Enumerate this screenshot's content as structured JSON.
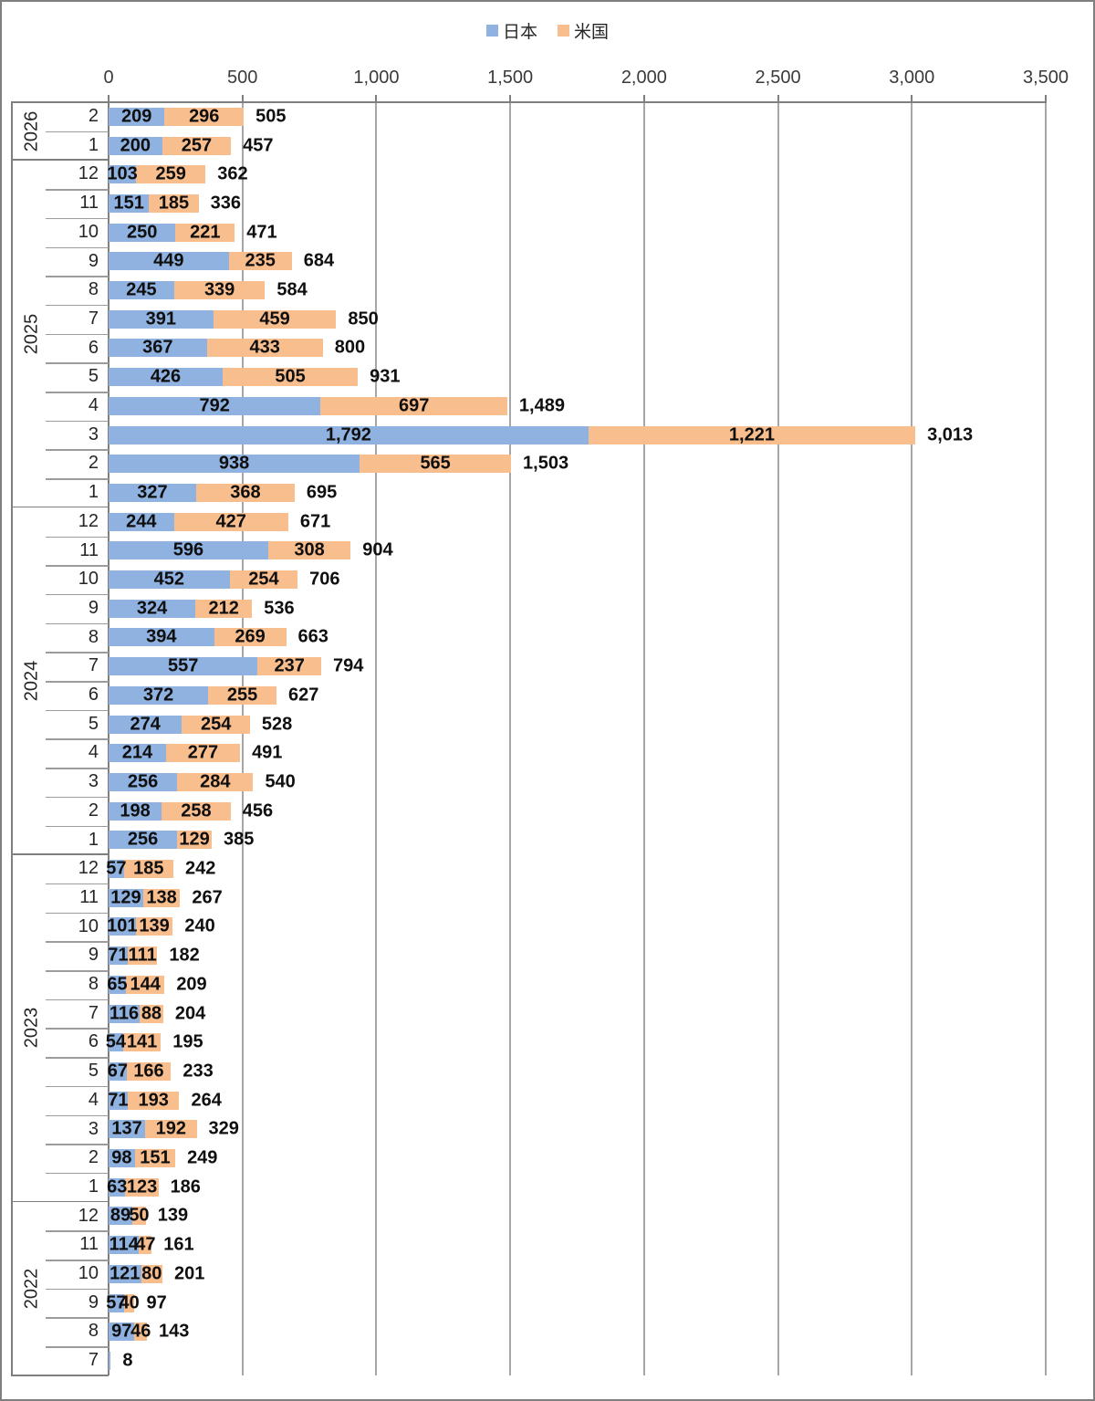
{
  "chart_data": {
    "type": "bar",
    "orientation": "horizontal",
    "stacked": true,
    "title": "",
    "xlabel": "",
    "ylabel": "",
    "xlim": [
      0,
      3500
    ],
    "x_tick_interval": 500,
    "x_tick_labels": [
      "0",
      "500",
      "1,000",
      "1,500",
      "2,000",
      "2,500",
      "3,000",
      "3,500"
    ],
    "grid": true,
    "legend_position": "top-center",
    "series": [
      {
        "name": "日本",
        "color": "#8FB2E1"
      },
      {
        "name": "米国",
        "color": "#F8BE8E"
      }
    ],
    "groups": [
      {
        "year": "2026",
        "rows": [
          {
            "month": "2",
            "japan": 209,
            "us": 296,
            "total": 505
          },
          {
            "month": "1",
            "japan": 200,
            "us": 257,
            "total": 457
          }
        ]
      },
      {
        "year": "2025",
        "rows": [
          {
            "month": "12",
            "japan": 103,
            "us": 259,
            "total": 362
          },
          {
            "month": "11",
            "japan": 151,
            "us": 185,
            "total": 336
          },
          {
            "month": "10",
            "japan": 250,
            "us": 221,
            "total": 471
          },
          {
            "month": "9",
            "japan": 449,
            "us": 235,
            "total": 684
          },
          {
            "month": "8",
            "japan": 245,
            "us": 339,
            "total": 584
          },
          {
            "month": "7",
            "japan": 391,
            "us": 459,
            "total": 850
          },
          {
            "month": "6",
            "japan": 367,
            "us": 433,
            "total": 800
          },
          {
            "month": "5",
            "japan": 426,
            "us": 505,
            "total": 931
          },
          {
            "month": "4",
            "japan": 792,
            "us": 697,
            "total": 1489
          },
          {
            "month": "3",
            "japan": 1792,
            "us": 1221,
            "total": 3013
          },
          {
            "month": "2",
            "japan": 938,
            "us": 565,
            "total": 1503
          },
          {
            "month": "1",
            "japan": 327,
            "us": 368,
            "total": 695
          }
        ]
      },
      {
        "year": "2024",
        "rows": [
          {
            "month": "12",
            "japan": 244,
            "us": 427,
            "total": 671
          },
          {
            "month": "11",
            "japan": 596,
            "us": 308,
            "total": 904
          },
          {
            "month": "10",
            "japan": 452,
            "us": 254,
            "total": 706
          },
          {
            "month": "9",
            "japan": 324,
            "us": 212,
            "total": 536
          },
          {
            "month": "8",
            "japan": 394,
            "us": 269,
            "total": 663
          },
          {
            "month": "7",
            "japan": 557,
            "us": 237,
            "total": 794
          },
          {
            "month": "6",
            "japan": 372,
            "us": 255,
            "total": 627
          },
          {
            "month": "5",
            "japan": 274,
            "us": 254,
            "total": 528
          },
          {
            "month": "4",
            "japan": 214,
            "us": 277,
            "total": 491
          },
          {
            "month": "3",
            "japan": 256,
            "us": 284,
            "total": 540
          },
          {
            "month": "2",
            "japan": 198,
            "us": 258,
            "total": 456
          },
          {
            "month": "1",
            "japan": 256,
            "us": 129,
            "total": 385
          }
        ]
      },
      {
        "year": "2023",
        "rows": [
          {
            "month": "12",
            "japan": 57,
            "us": 185,
            "total": 242
          },
          {
            "month": "11",
            "japan": 129,
            "us": 138,
            "total": 267
          },
          {
            "month": "10",
            "japan": 101,
            "us": 139,
            "total": 240
          },
          {
            "month": "9",
            "japan": 71,
            "us": 111,
            "total": 182
          },
          {
            "month": "8",
            "japan": 65,
            "us": 144,
            "total": 209
          },
          {
            "month": "7",
            "japan": 116,
            "us": 88,
            "total": 204
          },
          {
            "month": "6",
            "japan": 54,
            "us": 141,
            "total": 195
          },
          {
            "month": "5",
            "japan": 67,
            "us": 166,
            "total": 233
          },
          {
            "month": "4",
            "japan": 71,
            "us": 193,
            "total": 264
          },
          {
            "month": "3",
            "japan": 137,
            "us": 192,
            "total": 329
          },
          {
            "month": "2",
            "japan": 98,
            "us": 151,
            "total": 249
          },
          {
            "month": "1",
            "japan": 63,
            "us": 123,
            "total": 186
          }
        ]
      },
      {
        "year": "2022",
        "rows": [
          {
            "month": "12",
            "japan": 89,
            "us": 50,
            "total": 139
          },
          {
            "month": "11",
            "japan": 114,
            "us": 47,
            "total": 161
          },
          {
            "month": "10",
            "japan": 121,
            "us": 80,
            "total": 201
          },
          {
            "month": "9",
            "japan": 57,
            "us": 40,
            "total": 97
          },
          {
            "month": "8",
            "japan": 97,
            "us": 46,
            "total": 143
          },
          {
            "month": "7",
            "japan": 8,
            "us": 0,
            "total": 8
          }
        ]
      }
    ]
  }
}
